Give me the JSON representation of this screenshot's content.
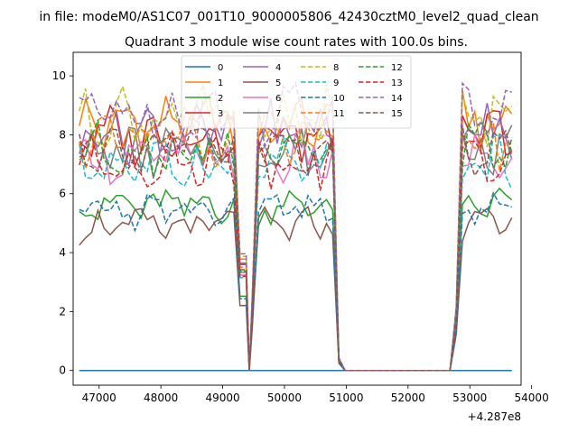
{
  "chart_data": {
    "type": "line",
    "suptitle": "in file: modeM0/AS1C07_001T10_9000005806_42430cztM0_level2_quad_clean",
    "title": "Quadrant 3 module wise count rates with 100.0s bins.",
    "xlabel": "",
    "ylabel": "",
    "x_offset_label": "+4.287e8",
    "xlim": [
      46580,
      53830
    ],
    "ylim": [
      -0.5,
      10.8
    ],
    "x_ticks": [
      47000,
      48000,
      49000,
      50000,
      51000,
      52000,
      53000,
      54000
    ],
    "y_ticks": [
      0,
      2,
      4,
      6,
      8,
      10
    ],
    "grid": false,
    "legend_position": "top-center",
    "legend_columns": 4,
    "segments": [
      {
        "start": 46680,
        "end": 49380,
        "step": 100
      },
      {
        "start": 49480,
        "end": 50880,
        "step": 100
      },
      {
        "start": 52780,
        "end": 53680,
        "step": 100
      }
    ],
    "gap_x": [
      50980,
      51080,
      51180,
      51280,
      51380,
      51480,
      51580,
      51680,
      51780,
      51880,
      51980,
      52080,
      52180,
      52280,
      52380,
      52480,
      52580,
      52680
    ],
    "dip_x": [
      49430
    ],
    "series": [
      {
        "name": "0",
        "color": "#1f77b4",
        "style": "solid",
        "level": 0.0
      },
      {
        "name": "1",
        "color": "#ff7f0e",
        "style": "solid",
        "level": 8.4
      },
      {
        "name": "2",
        "color": "#2ca02c",
        "style": "solid",
        "level": 5.6
      },
      {
        "name": "3",
        "color": "#d62728",
        "style": "solid",
        "level": 8.0
      },
      {
        "name": "4",
        "color": "#9467bd",
        "style": "solid",
        "level": 8.1
      },
      {
        "name": "5",
        "color": "#8c564b",
        "style": "solid",
        "level": 4.9
      },
      {
        "name": "6",
        "color": "#e377c2",
        "style": "solid",
        "level": 7.2
      },
      {
        "name": "7",
        "color": "#7f7f7f",
        "style": "solid",
        "level": 7.4
      },
      {
        "name": "8",
        "color": "#bcbd22",
        "style": "dashed",
        "level": 8.6
      },
      {
        "name": "9",
        "color": "#17becf",
        "style": "dashed",
        "level": 7.0
      },
      {
        "name": "10",
        "color": "#1f77b4",
        "style": "dashed",
        "level": 5.4
      },
      {
        "name": "11",
        "color": "#ff7f0e",
        "style": "dashed",
        "level": 7.8
      },
      {
        "name": "12",
        "color": "#2ca02c",
        "style": "dashed",
        "level": 7.5
      },
      {
        "name": "13",
        "color": "#d62728",
        "style": "dashed",
        "level": 7.1
      },
      {
        "name": "14",
        "color": "#9467bd",
        "style": "dashed",
        "level": 8.8
      },
      {
        "name": "15",
        "color": "#8c564b",
        "style": "dashed",
        "level": 7.6
      }
    ]
  }
}
